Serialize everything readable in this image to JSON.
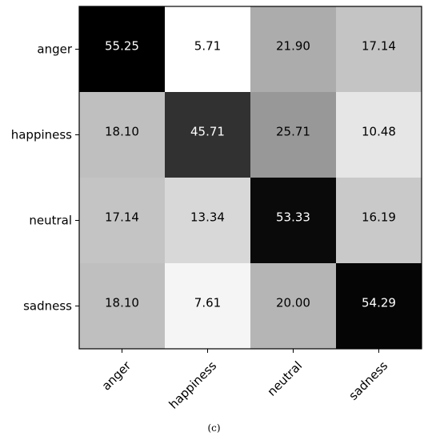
{
  "caption": "(c)",
  "chart_data": {
    "type": "heatmap",
    "x_categories": [
      "anger",
      "happiness",
      "neutral",
      "sadness"
    ],
    "y_categories": [
      "anger",
      "happiness",
      "neutral",
      "sadness"
    ],
    "values": [
      [
        55.25,
        5.71,
        21.9,
        17.14
      ],
      [
        18.1,
        45.71,
        25.71,
        10.48
      ],
      [
        17.14,
        13.34,
        53.33,
        16.19
      ],
      [
        18.1,
        7.61,
        20.0,
        54.29
      ]
    ],
    "value_labels": [
      [
        "55.25",
        "5.71",
        "21.90",
        "17.14"
      ],
      [
        "18.10",
        "45.71",
        "25.71",
        "10.48"
      ],
      [
        "17.14",
        "13.34",
        "53.33",
        "16.19"
      ],
      [
        "18.10",
        "7.61",
        "20.00",
        "54.29"
      ]
    ],
    "colormap": "gray_r",
    "vmin": 5.71,
    "vmax": 55.25,
    "grid": false,
    "legend": "none"
  }
}
